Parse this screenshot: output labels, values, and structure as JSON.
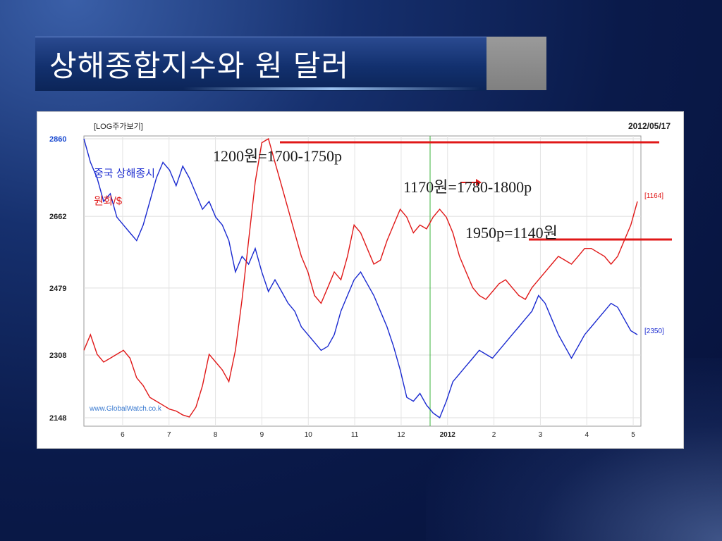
{
  "slide": {
    "title": "상해종합지수와 원 달러"
  },
  "chart_data": {
    "type": "line",
    "header_left": "[LOG주가보기]",
    "header_right": "2012/05/17",
    "watermark": "www.GlobalWatch.co.k",
    "y_ticks": [
      "2860",
      "2662",
      "2479",
      "2308",
      "2148"
    ],
    "y_tick_values": [
      2860,
      2662,
      2479,
      2308,
      2148
    ],
    "x_ticks": [
      "6",
      "7",
      "8",
      "9",
      "10",
      "11",
      "12",
      "2012",
      "2",
      "3",
      "4",
      "5"
    ],
    "colors": {
      "shanghai": "#1a2ad0",
      "krw": "#e01818",
      "marker": "#3bb33b",
      "left_axis": "#1a4ad0"
    },
    "series": [
      {
        "name": "중국 상해종시",
        "color": "#1a2ad0",
        "last_label": "[2350]",
        "values": [
          2860,
          2800,
          2760,
          2700,
          2720,
          2660,
          2640,
          2620,
          2600,
          2640,
          2700,
          2760,
          2800,
          2780,
          2740,
          2790,
          2760,
          2720,
          2680,
          2700,
          2660,
          2640,
          2600,
          2520,
          2560,
          2540,
          2580,
          2520,
          2470,
          2500,
          2470,
          2440,
          2420,
          2380,
          2360,
          2340,
          2320,
          2330,
          2360,
          2420,
          2460,
          2500,
          2520,
          2490,
          2460,
          2420,
          2380,
          2330,
          2270,
          2200,
          2190,
          2210,
          2180,
          2160,
          2148,
          2190,
          2240,
          2260,
          2280,
          2300,
          2320,
          2310,
          2300,
          2320,
          2340,
          2360,
          2380,
          2400,
          2420,
          2460,
          2440,
          2400,
          2360,
          2330,
          2300,
          2330,
          2360,
          2380,
          2400,
          2420,
          2440,
          2430,
          2400,
          2370,
          2360
        ]
      },
      {
        "name": "원화/$",
        "color": "#e01818",
        "last_label": "[1164]",
        "values": [
          2320,
          2360,
          2310,
          2290,
          2300,
          2310,
          2320,
          2300,
          2250,
          2230,
          2200,
          2190,
          2180,
          2170,
          2165,
          2155,
          2150,
          2175,
          2230,
          2310,
          2290,
          2270,
          2240,
          2320,
          2450,
          2600,
          2750,
          2850,
          2860,
          2800,
          2740,
          2680,
          2620,
          2560,
          2520,
          2460,
          2440,
          2480,
          2520,
          2500,
          2560,
          2640,
          2620,
          2580,
          2540,
          2550,
          2600,
          2640,
          2680,
          2660,
          2620,
          2640,
          2630,
          2660,
          2680,
          2660,
          2620,
          2560,
          2520,
          2480,
          2460,
          2450,
          2470,
          2490,
          2500,
          2480,
          2460,
          2450,
          2480,
          2500,
          2520,
          2540,
          2560,
          2550,
          2540,
          2560,
          2580,
          2580,
          2570,
          2560,
          2540,
          2560,
          2600,
          2640,
          2700
        ]
      }
    ],
    "annotations": [
      "1200원=1700-1750p",
      "1170원=1780-1800p",
      "1950p=1140원"
    ]
  }
}
